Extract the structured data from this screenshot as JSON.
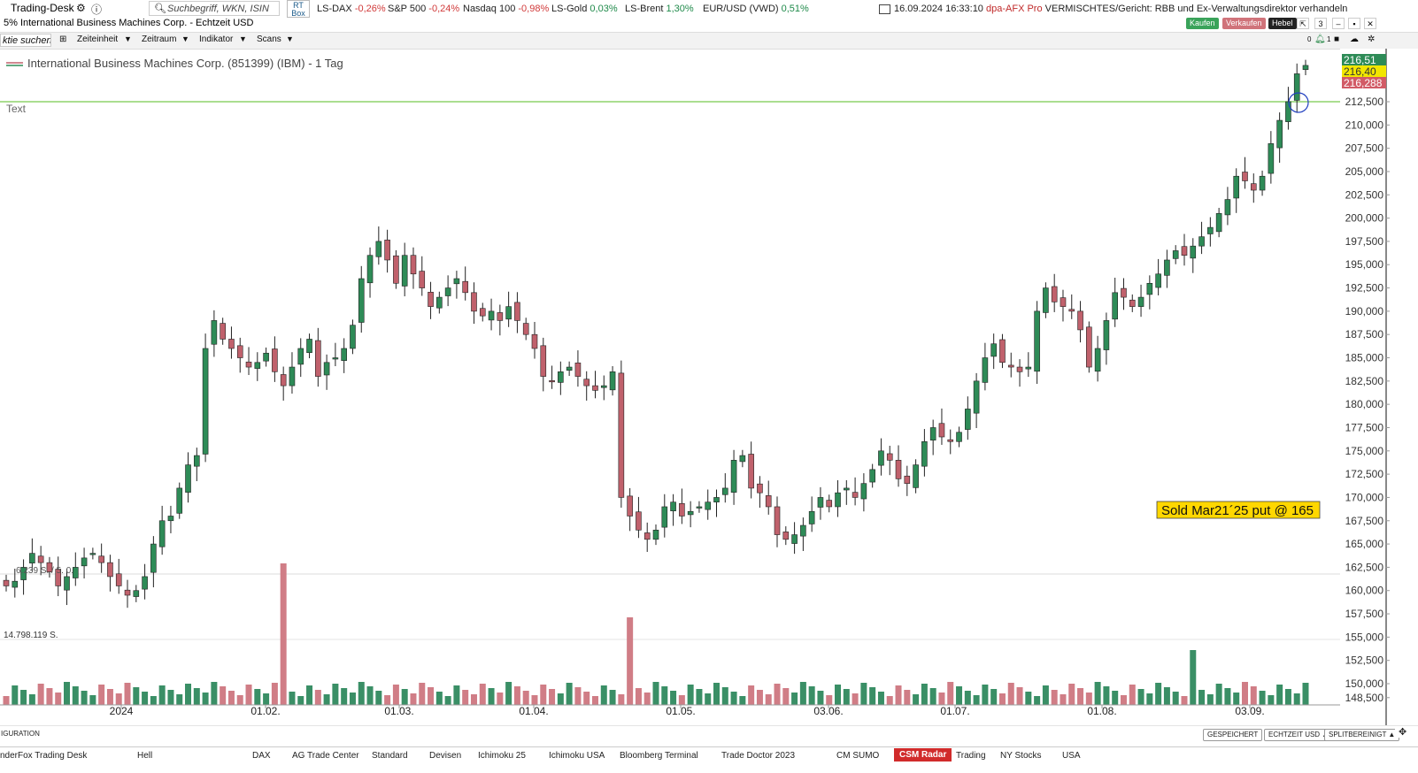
{
  "app": {
    "title": "Trading-Desk",
    "search_placeholder": "Suchbegriff, WKN, ISIN",
    "rt_box": "RT\nBox"
  },
  "tickers": [
    {
      "name": "LS-DAX",
      "change": "-0,26%",
      "dir": "neg"
    },
    {
      "name": "S&P 500",
      "change": "-0,24%",
      "dir": "neg"
    },
    {
      "name": "Nasdaq 100",
      "change": "-0,98%",
      "dir": "neg"
    },
    {
      "name": "LS-Gold",
      "change": "0,03%",
      "dir": "pos"
    },
    {
      "name": "LS-Brent",
      "change": "1,30%",
      "dir": "pos"
    },
    {
      "name": "EUR/USD (VWD)",
      "change": "0,51%",
      "dir": "pos"
    }
  ],
  "news": {
    "time": "16.09.2024 16:33:10",
    "source": "dpa-AFX Pro",
    "headline": "VERMISCHTES/Gericht: RBB und Ex-Verwaltungsdirektor verhandeln"
  },
  "window": {
    "subtitle": "5% International Business Machines Corp. - Echtzeit USD",
    "buy_label": "Kaufen",
    "sell_label": "Verkaufen",
    "lever_label": "Hebel",
    "colors": {
      "buy": "#3aa35a",
      "sell": "#d0737a",
      "lever": "#222222"
    }
  },
  "toolbar": {
    "search_text": "ktie suchen",
    "items": [
      "Zeiteinheit",
      "Zeitraum",
      "Indikator",
      "Scans"
    ],
    "right_count_a": "0",
    "right_count_b": "1"
  },
  "chart_data": {
    "type": "candlestick",
    "title": "International Business Machines Corp. (851399) (IBM) - 1 Tag",
    "text_label": "Text",
    "price_labels": {
      "high": "216,51",
      "last": "216,40",
      "low": "216,288"
    },
    "y_ticks": [
      "212,500",
      "210,000",
      "207,500",
      "205,000",
      "202,500",
      "200,000",
      "197,500",
      "195,000",
      "192,500",
      "190,000",
      "187,500",
      "185,000",
      "182,500",
      "180,000",
      "177,500",
      "175,000",
      "172,500",
      "170,000",
      "167,500",
      "165,000",
      "162,500",
      "160,000",
      "157,500",
      "155,000",
      "152,500",
      "150,000",
      "148,500"
    ],
    "x_labels": [
      "2024",
      "01.02.",
      "01.03.",
      "01.04.",
      "01.05.",
      "03.06.",
      "01.07.",
      "01.08.",
      "03.09."
    ],
    "horizontal_line": 212.5,
    "annotation": "Sold Mar21´25 put @ 165",
    "volume_labels": [
      "6.239 S. / 5.   0.",
      "14.798.119 S."
    ],
    "ylim": [
      148.5,
      217
    ],
    "closes_approx": [
      160.5,
      161,
      162.5,
      164,
      163,
      162,
      160.5,
      161.5,
      162.5,
      163.5,
      164,
      163,
      161.5,
      160.5,
      159.5,
      160,
      161.5,
      165,
      167.5,
      168,
      171,
      173.5,
      174.5,
      186,
      189,
      187,
      186,
      185,
      184,
      184.5,
      185.5,
      183.5,
      182,
      184,
      186,
      187,
      183,
      184.5,
      185,
      186,
      188.5,
      193.5,
      196,
      197.5,
      195.5,
      193,
      196,
      194,
      192.5,
      190.5,
      191.5,
      192.5,
      193.5,
      192,
      190,
      189.5,
      190,
      189,
      190.5,
      189,
      187.5,
      186,
      183,
      182.5,
      183.5,
      184,
      183,
      182,
      181.5,
      182,
      183.5,
      170,
      168,
      166.5,
      165.5,
      166.5,
      169,
      169.5,
      168,
      168.5,
      169,
      169.5,
      170,
      171,
      174,
      174.5,
      171,
      170.5,
      169,
      166,
      165.5,
      166,
      167,
      168.5,
      170,
      169,
      170.5,
      171,
      170,
      171.5,
      173,
      175,
      174,
      172,
      171.5,
      173.5,
      176,
      177.5,
      176.5,
      176,
      177,
      179.5,
      182.5,
      185,
      186.5,
      184.5,
      184,
      183.5,
      184,
      190,
      192.5,
      191,
      190.5,
      190,
      188,
      184,
      186,
      189,
      192,
      191.5,
      190.5,
      191.5,
      193,
      194,
      195.5,
      196.5,
      196,
      197,
      198,
      199,
      200.5,
      202,
      204.5,
      204,
      203,
      204.5,
      208,
      210.5,
      212.5,
      215.5,
      216.4
    ]
  },
  "statusbar": {
    "left": "IGURATION",
    "saved": "GESPEICHERT",
    "realtime": "ECHTZEIT USD ▲",
    "split": "SPLITBEREINIGT ▲"
  },
  "taskbar": {
    "title": "nderFox Trading Desk",
    "items": [
      "Hell",
      "DAX",
      "AG Trade Center",
      "Standard",
      "Devisen",
      "Ichimoku 25",
      "Ichimoku USA",
      "Bloomberg Terminal",
      "Trade Doctor 2023",
      "CM SUMO",
      "CSM Radar",
      "Trading",
      "NY Stocks",
      "USA"
    ]
  }
}
